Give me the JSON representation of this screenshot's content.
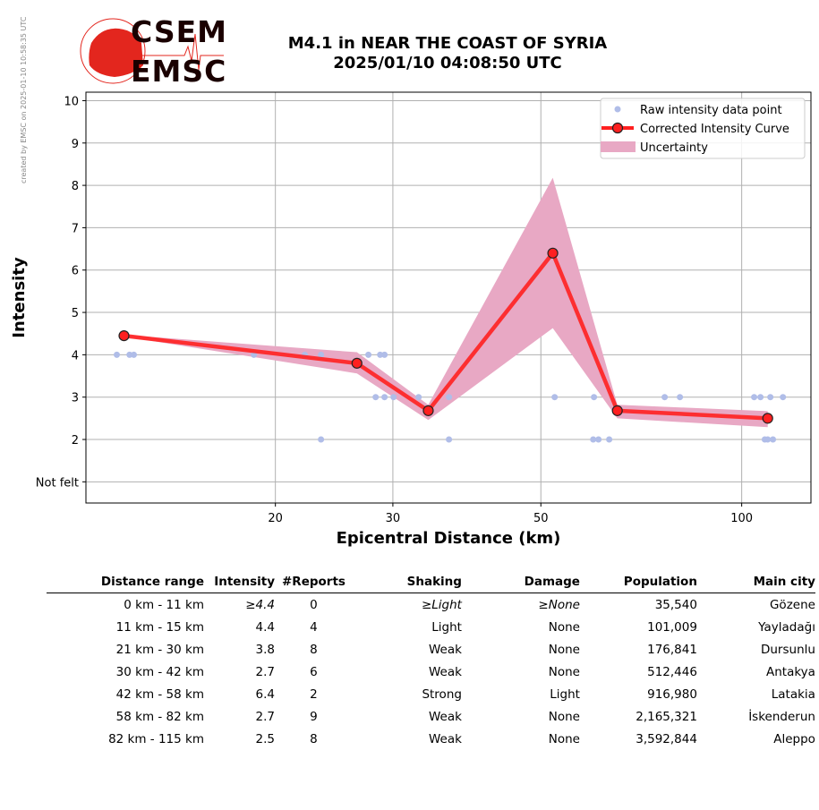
{
  "watermark": "created by EMSC on 2025-01-10 10:58:35 UTC",
  "logo": {
    "top": "CSEM",
    "bottom": "EMSC"
  },
  "title_line1": "M4.1 in NEAR THE COAST OF SYRIA",
  "title_line2": "2025/01/10 04:08:50 UTC",
  "colors": {
    "raw": "#b0bde8",
    "curve": "#ff2020",
    "band": "#e8a8c4",
    "grid": "#b0b0b0"
  },
  "chart_data": {
    "type": "line",
    "xscale": "log",
    "xlabel": "Epicentral Distance (km)",
    "ylabel": "Intensity",
    "xlim": [
      10.4,
      127
    ],
    "ylim": [
      0.5,
      10.2
    ],
    "xticks": [
      20,
      30,
      50,
      100
    ],
    "xtick_labels": [
      "20",
      "30",
      "50",
      "100"
    ],
    "yticks": [
      1,
      2,
      3,
      4,
      5,
      6,
      7,
      8,
      9,
      10
    ],
    "ytick_labels": [
      "Not felt",
      "2",
      "3",
      "4",
      "5",
      "6",
      "7",
      "8",
      "9",
      "10"
    ],
    "grid": true,
    "legend_position": "top-right",
    "legend": [
      "Raw intensity data point",
      "Corrected Intensity Curve",
      "Uncertainty"
    ],
    "raw_points": [
      [
        11.57,
        4
      ],
      [
        12.09,
        4
      ],
      [
        12.27,
        4
      ],
      [
        18.57,
        4
      ],
      [
        22.14,
        4
      ],
      [
        23.41,
        4
      ],
      [
        27.57,
        4
      ],
      [
        28.71,
        4
      ],
      [
        29.15,
        4
      ],
      [
        28.27,
        3
      ],
      [
        29.15,
        3
      ],
      [
        30.07,
        3
      ],
      [
        32.79,
        3
      ],
      [
        36.41,
        3
      ],
      [
        23.41,
        2
      ],
      [
        36.41,
        2
      ],
      [
        52.44,
        3
      ],
      [
        60.06,
        3
      ],
      [
        76.66,
        3
      ],
      [
        80.8,
        3
      ],
      [
        104.4,
        3
      ],
      [
        106.7,
        3
      ],
      [
        110.4,
        3
      ],
      [
        115.3,
        3
      ],
      [
        59.9,
        2
      ],
      [
        61.0,
        2
      ],
      [
        63.3,
        2
      ],
      [
        108.3,
        2
      ],
      [
        109.4,
        2
      ],
      [
        111.4,
        2
      ]
    ],
    "curve": {
      "x": [
        11.86,
        26.5,
        33.9,
        52.1,
        65.1,
        109.4
      ],
      "y": [
        4.45,
        3.8,
        2.68,
        6.4,
        2.68,
        2.5
      ]
    },
    "uncertainty": {
      "upper": [
        4.47,
        4.06,
        2.82,
        8.18,
        2.82,
        2.67
      ],
      "lower": [
        4.43,
        3.56,
        2.46,
        4.63,
        2.5,
        2.29
      ]
    }
  },
  "table": {
    "headers": [
      "Distance range",
      "Intensity",
      "#Reports",
      "Shaking",
      "Damage",
      "Population",
      "Main city"
    ],
    "rows": [
      [
        "0 km -   11 km",
        "≥4.4",
        "0",
        "≥Light",
        "≥None",
        "35,540",
        "Gözene"
      ],
      [
        "11 km -   15 km",
        "4.4",
        "4",
        "Light",
        "None",
        "101,009",
        "Yayladağı"
      ],
      [
        "21 km -   30 km",
        "3.8",
        "8",
        "Weak",
        "None",
        "176,841",
        "Dursunlu"
      ],
      [
        "30 km -   42 km",
        "2.7",
        "6",
        "Weak",
        "None",
        "512,446",
        "Antakya"
      ],
      [
        "42 km -   58 km",
        "6.4",
        "2",
        "Strong",
        "Light",
        "916,980",
        "Latakia"
      ],
      [
        "58 km -   82 km",
        "2.7",
        "9",
        "Weak",
        "None",
        "2,165,321",
        "İskenderun"
      ],
      [
        "82 km -  115 km",
        "2.5",
        "8",
        "Weak",
        "None",
        "3,592,844",
        "Aleppo"
      ]
    ]
  }
}
